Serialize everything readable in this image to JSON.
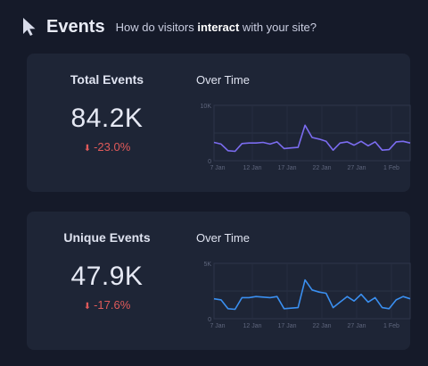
{
  "header": {
    "title": "Events",
    "subtitle_pre": "How do visitors ",
    "subtitle_bold": "interact",
    "subtitle_post": " with your site?",
    "icon": "cursor-icon"
  },
  "cards": [
    {
      "metric_label": "Total Events",
      "metric_value": "84.2K",
      "change": "-23.0%",
      "change_color": "#e05a5a",
      "chart_title": "Over Time",
      "line_color": "#7b6cf0"
    },
    {
      "metric_label": "Unique Events",
      "metric_value": "47.9K",
      "change": "-17.6%",
      "change_color": "#e05a5a",
      "chart_title": "Over Time",
      "line_color": "#3a8ff0"
    }
  ],
  "chart_data": [
    {
      "type": "line",
      "title": "Over Time",
      "x_ticks": [
        "7 Jan",
        "12 Jan",
        "17 Jan",
        "22 Jan",
        "27 Jan",
        "1 Feb"
      ],
      "y_ticks": [
        "0",
        "10K"
      ],
      "ylim": [
        0,
        10000
      ],
      "series": [
        {
          "values": [
            3300,
            3000,
            1800,
            1700,
            3100,
            3200,
            3200,
            3300,
            3000,
            3400,
            2200,
            2300,
            2400,
            6400,
            4200,
            3900,
            3500,
            1900,
            3200,
            3400,
            2800,
            3500,
            2700,
            3400,
            1900,
            2000,
            3400,
            3500,
            3200
          ]
        }
      ],
      "grid": true
    },
    {
      "type": "line",
      "title": "Over Time",
      "x_ticks": [
        "7 Jan",
        "12 Jan",
        "17 Jan",
        "22 Jan",
        "27 Jan",
        "1 Feb"
      ],
      "y_ticks": [
        "0",
        "5K"
      ],
      "ylim": [
        0,
        5000
      ],
      "series": [
        {
          "values": [
            1800,
            1700,
            900,
            850,
            1900,
            1900,
            2000,
            1950,
            1900,
            2000,
            900,
            950,
            1000,
            3500,
            2600,
            2400,
            2300,
            1000,
            1500,
            2000,
            1600,
            2200,
            1500,
            1900,
            1000,
            900,
            1700,
            2000,
            1800
          ]
        }
      ],
      "grid": true
    }
  ]
}
